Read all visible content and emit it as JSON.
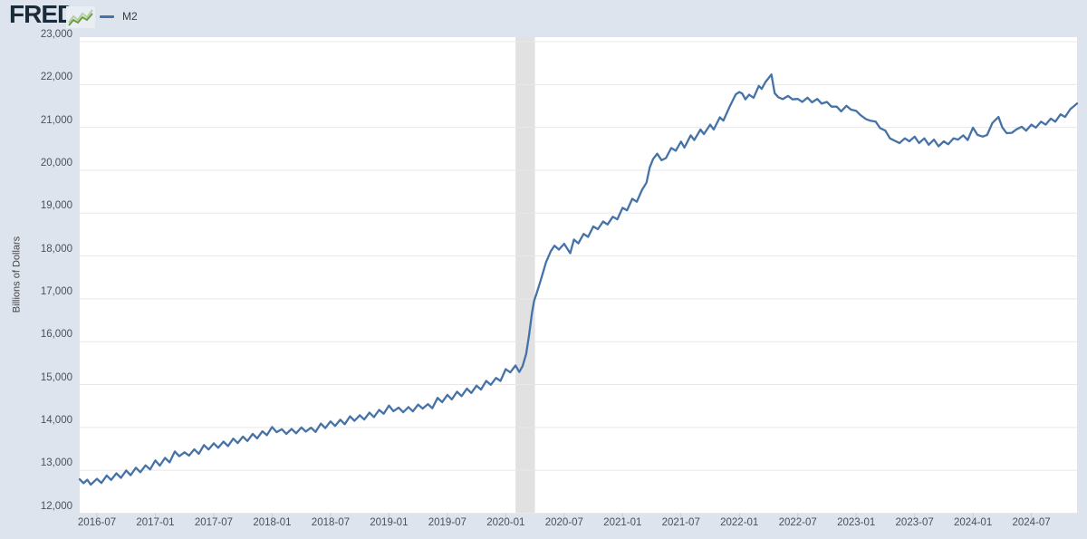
{
  "header": {
    "logo_text": "FRED",
    "registered_mark": "®",
    "logo_icon": "line-chart-icon",
    "legend": {
      "series_label": "M2",
      "series_color": "#4572a7"
    }
  },
  "colors": {
    "page_background": "#dee4ee",
    "plot_background": "#ffffff",
    "gridline": "#e8e8e8",
    "recession_band": "#e1e1e1",
    "line": "#4572a7",
    "axis_text": "#4a5158",
    "tick_mark": "#c5ccd6",
    "logo_text": "#1c2b39",
    "logo_icon_green_dark": "#6c9e3f",
    "logo_icon_green_light": "#b9cfa4"
  },
  "chart_data": {
    "type": "line",
    "title": "",
    "series_name": "M2",
    "ylabel": "Billions of Dollars",
    "legend_position": "top-left",
    "grid": true,
    "ylim": [
      12000,
      23106
    ],
    "x_range": [
      "2016-05-08",
      "2024-11-22"
    ],
    "y_tick_labels": [
      "12,000",
      "13,000",
      "14,000",
      "15,000",
      "16,000",
      "17,000",
      "18,000",
      "19,000",
      "20,000",
      "21,000",
      "22,000",
      "23,000"
    ],
    "x_tick_labels": [
      "2016-07",
      "2017-01",
      "2017-07",
      "2018-01",
      "2018-07",
      "2019-01",
      "2019-07",
      "2020-01",
      "2020-07",
      "2021-01",
      "2021-07",
      "2022-01",
      "2022-07",
      "2023-01",
      "2023-07",
      "2024-01",
      "2024-07"
    ],
    "recession_band": {
      "start": "2020-02-01",
      "end": "2020-04-01"
    },
    "points": [
      [
        "2016-05-08",
        12790
      ],
      [
        "2016-05-20",
        12700
      ],
      [
        "2016-06-01",
        12780
      ],
      [
        "2016-06-12",
        12665
      ],
      [
        "2016-07-01",
        12800
      ],
      [
        "2016-07-15",
        12705
      ],
      [
        "2016-08-01",
        12880
      ],
      [
        "2016-08-15",
        12775
      ],
      [
        "2016-09-01",
        12930
      ],
      [
        "2016-09-15",
        12825
      ],
      [
        "2016-10-01",
        12995
      ],
      [
        "2016-10-15",
        12885
      ],
      [
        "2016-11-01",
        13060
      ],
      [
        "2016-11-15",
        12955
      ],
      [
        "2016-12-01",
        13115
      ],
      [
        "2016-12-15",
        13020
      ],
      [
        "2017-01-01",
        13230
      ],
      [
        "2017-01-15",
        13110
      ],
      [
        "2017-02-01",
        13290
      ],
      [
        "2017-02-15",
        13185
      ],
      [
        "2017-03-01",
        13440
      ],
      [
        "2017-03-15",
        13330
      ],
      [
        "2017-04-01",
        13420
      ],
      [
        "2017-04-15",
        13345
      ],
      [
        "2017-05-01",
        13490
      ],
      [
        "2017-05-15",
        13385
      ],
      [
        "2017-06-01",
        13590
      ],
      [
        "2017-06-15",
        13485
      ],
      [
        "2017-07-01",
        13630
      ],
      [
        "2017-07-15",
        13525
      ],
      [
        "2017-08-01",
        13670
      ],
      [
        "2017-08-15",
        13565
      ],
      [
        "2017-09-01",
        13740
      ],
      [
        "2017-09-15",
        13635
      ],
      [
        "2017-10-01",
        13785
      ],
      [
        "2017-10-15",
        13685
      ],
      [
        "2017-11-01",
        13850
      ],
      [
        "2017-11-15",
        13745
      ],
      [
        "2017-12-01",
        13910
      ],
      [
        "2017-12-15",
        13820
      ],
      [
        "2018-01-01",
        14010
      ],
      [
        "2018-01-15",
        13890
      ],
      [
        "2018-02-01",
        13960
      ],
      [
        "2018-02-15",
        13850
      ],
      [
        "2018-03-01",
        13965
      ],
      [
        "2018-03-15",
        13865
      ],
      [
        "2018-04-01",
        14000
      ],
      [
        "2018-04-15",
        13905
      ],
      [
        "2018-05-01",
        13995
      ],
      [
        "2018-05-15",
        13895
      ],
      [
        "2018-06-01",
        14090
      ],
      [
        "2018-06-15",
        13985
      ],
      [
        "2018-07-01",
        14140
      ],
      [
        "2018-07-15",
        14035
      ],
      [
        "2018-08-01",
        14180
      ],
      [
        "2018-08-15",
        14075
      ],
      [
        "2018-09-01",
        14260
      ],
      [
        "2018-09-15",
        14155
      ],
      [
        "2018-10-01",
        14285
      ],
      [
        "2018-10-15",
        14185
      ],
      [
        "2018-11-01",
        14345
      ],
      [
        "2018-11-15",
        14240
      ],
      [
        "2018-12-01",
        14410
      ],
      [
        "2018-12-15",
        14320
      ],
      [
        "2019-01-01",
        14510
      ],
      [
        "2019-01-15",
        14380
      ],
      [
        "2019-02-01",
        14465
      ],
      [
        "2019-02-15",
        14355
      ],
      [
        "2019-03-01",
        14475
      ],
      [
        "2019-03-15",
        14375
      ],
      [
        "2019-04-01",
        14535
      ],
      [
        "2019-04-15",
        14440
      ],
      [
        "2019-05-01",
        14545
      ],
      [
        "2019-05-15",
        14450
      ],
      [
        "2019-06-01",
        14690
      ],
      [
        "2019-06-15",
        14590
      ],
      [
        "2019-07-01",
        14760
      ],
      [
        "2019-07-15",
        14655
      ],
      [
        "2019-08-01",
        14835
      ],
      [
        "2019-08-15",
        14730
      ],
      [
        "2019-09-01",
        14905
      ],
      [
        "2019-09-15",
        14805
      ],
      [
        "2019-10-01",
        14975
      ],
      [
        "2019-10-15",
        14885
      ],
      [
        "2019-11-01",
        15085
      ],
      [
        "2019-11-15",
        14995
      ],
      [
        "2019-12-01",
        15155
      ],
      [
        "2019-12-15",
        15085
      ],
      [
        "2020-01-01",
        15360
      ],
      [
        "2020-01-15",
        15285
      ],
      [
        "2020-02-01",
        15445
      ],
      [
        "2020-02-13",
        15295
      ],
      [
        "2020-02-23",
        15430
      ],
      [
        "2020-03-04",
        15720
      ],
      [
        "2020-03-13",
        16160
      ],
      [
        "2020-03-22",
        16660
      ],
      [
        "2020-03-29",
        16960
      ],
      [
        "2020-04-06",
        17120
      ],
      [
        "2020-04-20",
        17460
      ],
      [
        "2020-05-05",
        17850
      ],
      [
        "2020-05-20",
        18110
      ],
      [
        "2020-06-01",
        18240
      ],
      [
        "2020-06-15",
        18150
      ],
      [
        "2020-07-01",
        18285
      ],
      [
        "2020-07-20",
        18065
      ],
      [
        "2020-08-01",
        18385
      ],
      [
        "2020-08-15",
        18295
      ],
      [
        "2020-09-01",
        18515
      ],
      [
        "2020-09-15",
        18445
      ],
      [
        "2020-10-01",
        18690
      ],
      [
        "2020-10-15",
        18625
      ],
      [
        "2020-11-01",
        18805
      ],
      [
        "2020-11-15",
        18735
      ],
      [
        "2020-12-01",
        18915
      ],
      [
        "2020-12-15",
        18855
      ],
      [
        "2021-01-01",
        19125
      ],
      [
        "2021-01-15",
        19065
      ],
      [
        "2021-02-01",
        19335
      ],
      [
        "2021-02-15",
        19265
      ],
      [
        "2021-03-01",
        19545
      ],
      [
        "2021-03-15",
        19710
      ],
      [
        "2021-03-25",
        20060
      ],
      [
        "2021-04-05",
        20260
      ],
      [
        "2021-04-18",
        20385
      ],
      [
        "2021-05-01",
        20235
      ],
      [
        "2021-05-15",
        20285
      ],
      [
        "2021-06-01",
        20520
      ],
      [
        "2021-06-15",
        20455
      ],
      [
        "2021-07-01",
        20670
      ],
      [
        "2021-07-12",
        20530
      ],
      [
        "2021-08-01",
        20815
      ],
      [
        "2021-08-12",
        20705
      ],
      [
        "2021-09-01",
        20950
      ],
      [
        "2021-09-12",
        20845
      ],
      [
        "2021-10-01",
        21065
      ],
      [
        "2021-10-12",
        20950
      ],
      [
        "2021-11-01",
        21235
      ],
      [
        "2021-11-12",
        21160
      ],
      [
        "2021-12-01",
        21485
      ],
      [
        "2021-12-20",
        21770
      ],
      [
        "2022-01-01",
        21825
      ],
      [
        "2022-01-10",
        21790
      ],
      [
        "2022-01-20",
        21655
      ],
      [
        "2022-02-01",
        21765
      ],
      [
        "2022-02-15",
        21690
      ],
      [
        "2022-03-01",
        21970
      ],
      [
        "2022-03-10",
        21900
      ],
      [
        "2022-03-22",
        22060
      ],
      [
        "2022-04-01",
        22150
      ],
      [
        "2022-04-10",
        22235
      ],
      [
        "2022-04-20",
        21800
      ],
      [
        "2022-05-01",
        21705
      ],
      [
        "2022-05-15",
        21660
      ],
      [
        "2022-06-01",
        21735
      ],
      [
        "2022-06-15",
        21655
      ],
      [
        "2022-07-01",
        21665
      ],
      [
        "2022-07-15",
        21595
      ],
      [
        "2022-08-01",
        21695
      ],
      [
        "2022-08-15",
        21585
      ],
      [
        "2022-09-01",
        21665
      ],
      [
        "2022-09-15",
        21555
      ],
      [
        "2022-10-01",
        21595
      ],
      [
        "2022-10-15",
        21485
      ],
      [
        "2022-11-01",
        21485
      ],
      [
        "2022-11-15",
        21375
      ],
      [
        "2022-12-01",
        21505
      ],
      [
        "2022-12-15",
        21415
      ],
      [
        "2023-01-01",
        21385
      ],
      [
        "2023-01-15",
        21285
      ],
      [
        "2023-02-01",
        21195
      ],
      [
        "2023-02-15",
        21155
      ],
      [
        "2023-03-01",
        21135
      ],
      [
        "2023-03-15",
        20985
      ],
      [
        "2023-04-01",
        20925
      ],
      [
        "2023-04-15",
        20745
      ],
      [
        "2023-05-01",
        20685
      ],
      [
        "2023-05-15",
        20635
      ],
      [
        "2023-06-01",
        20745
      ],
      [
        "2023-06-15",
        20675
      ],
      [
        "2023-07-01",
        20785
      ],
      [
        "2023-07-15",
        20635
      ],
      [
        "2023-08-01",
        20745
      ],
      [
        "2023-08-15",
        20595
      ],
      [
        "2023-09-01",
        20715
      ],
      [
        "2023-09-15",
        20560
      ],
      [
        "2023-10-01",
        20675
      ],
      [
        "2023-10-15",
        20605
      ],
      [
        "2023-11-01",
        20745
      ],
      [
        "2023-11-15",
        20715
      ],
      [
        "2023-12-01",
        20815
      ],
      [
        "2023-12-15",
        20705
      ],
      [
        "2024-01-01",
        20995
      ],
      [
        "2024-01-15",
        20825
      ],
      [
        "2024-02-01",
        20785
      ],
      [
        "2024-02-15",
        20825
      ],
      [
        "2024-03-01",
        21105
      ],
      [
        "2024-03-20",
        21245
      ],
      [
        "2024-04-01",
        21005
      ],
      [
        "2024-04-15",
        20865
      ],
      [
        "2024-05-01",
        20875
      ],
      [
        "2024-05-15",
        20955
      ],
      [
        "2024-06-01",
        21015
      ],
      [
        "2024-06-15",
        20925
      ],
      [
        "2024-07-01",
        21065
      ],
      [
        "2024-07-15",
        20995
      ],
      [
        "2024-08-01",
        21135
      ],
      [
        "2024-08-15",
        21065
      ],
      [
        "2024-09-01",
        21205
      ],
      [
        "2024-09-15",
        21135
      ],
      [
        "2024-10-01",
        21305
      ],
      [
        "2024-10-15",
        21245
      ],
      [
        "2024-11-01",
        21425
      ],
      [
        "2024-11-12",
        21495
      ],
      [
        "2024-11-22",
        21560
      ]
    ]
  }
}
